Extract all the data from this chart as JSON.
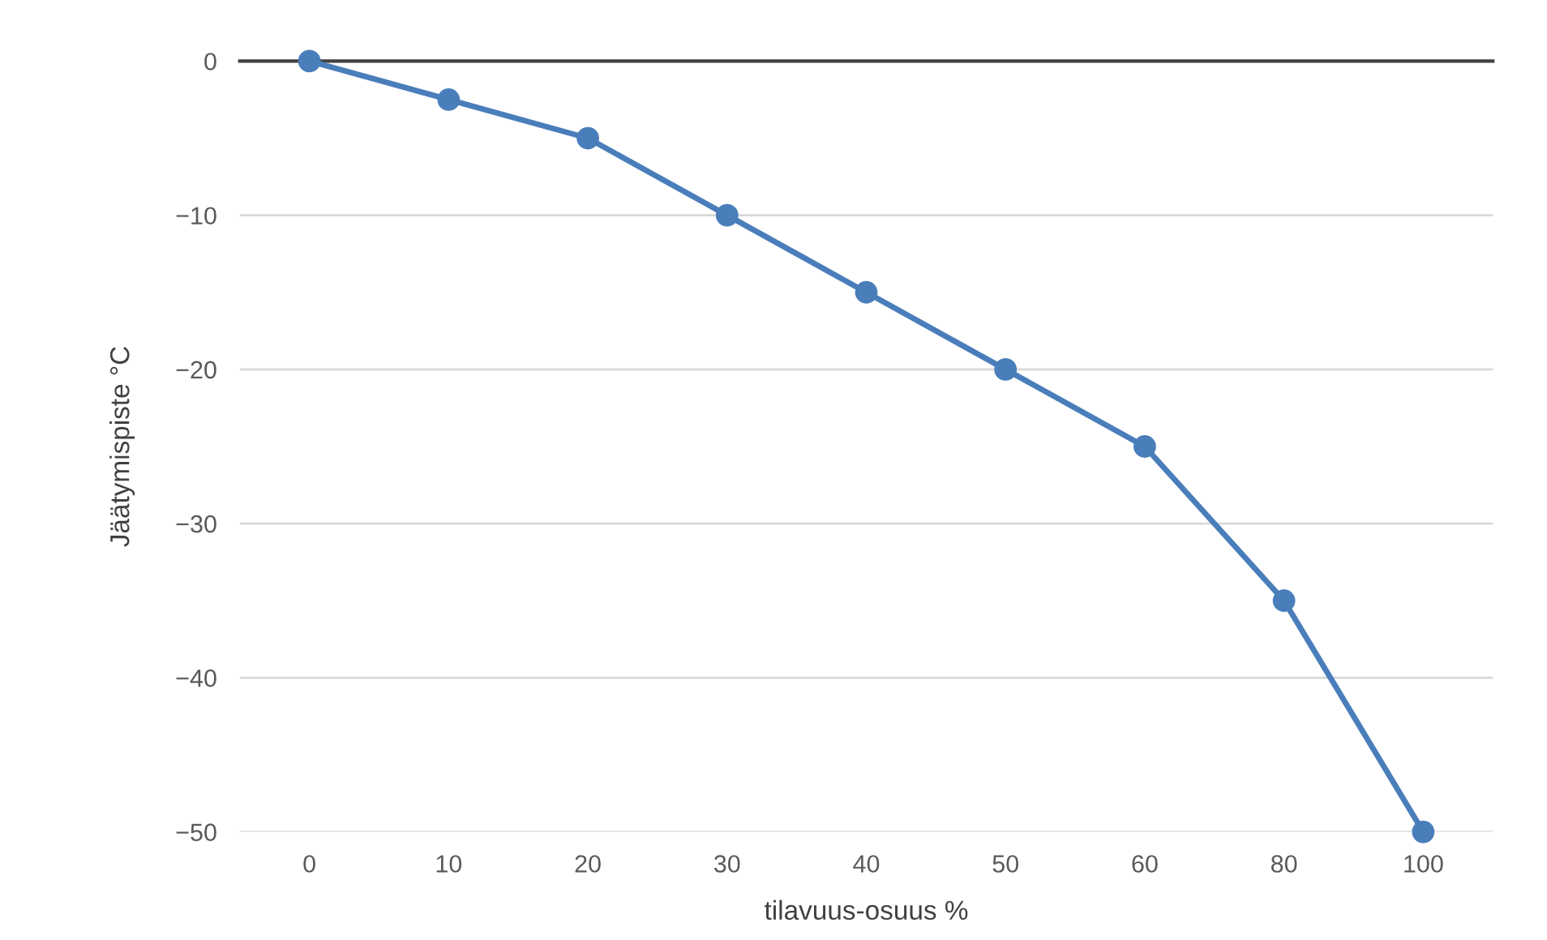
{
  "chart_data": {
    "type": "line",
    "xlabel": "tilavuus-osuus %",
    "ylabel": "Jäätymispiste °C",
    "categories": [
      "0",
      "10",
      "20",
      "30",
      "40",
      "50",
      "60",
      "80",
      "100"
    ],
    "series": [
      {
        "color": "#4a7ebb",
        "values": [
          0,
          -2.5,
          -5,
          -10,
          -15,
          -20,
          -25,
          -35,
          -50
        ]
      }
    ],
    "ylim": [
      -50,
      0
    ],
    "yticks": [
      -50,
      -40,
      -30,
      -20,
      -10,
      0
    ],
    "grid": "y",
    "marker": "circle",
    "line_style": "solid",
    "legend": false
  }
}
